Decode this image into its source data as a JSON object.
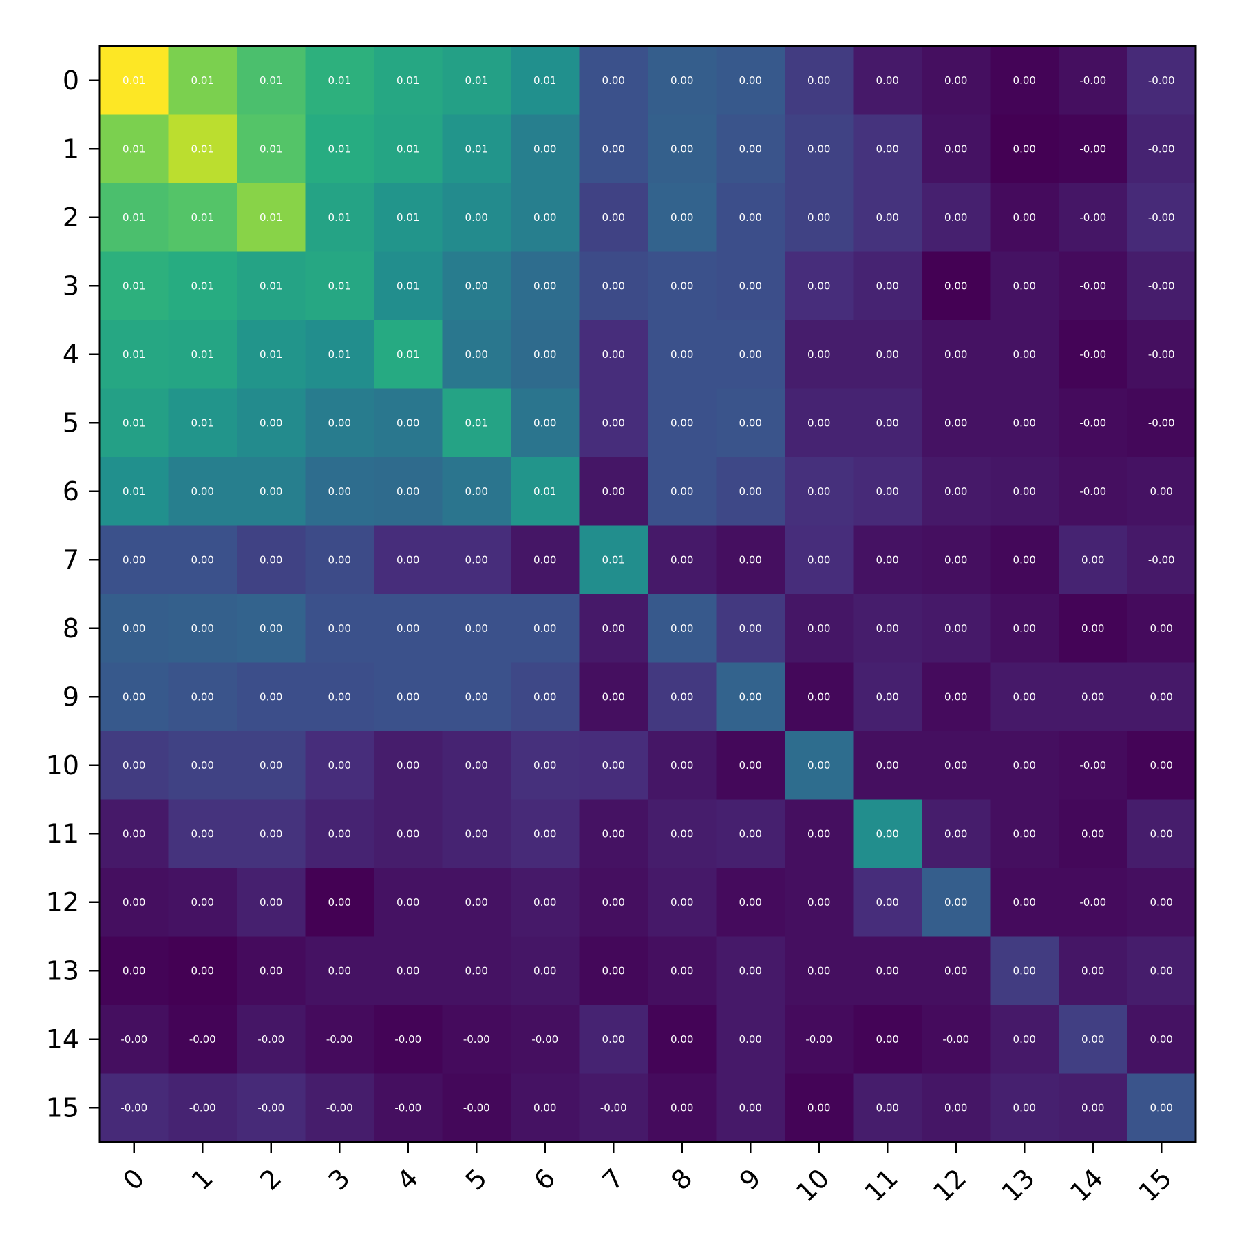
{
  "chart_data": {
    "type": "heatmap",
    "title": "",
    "xlabel": "",
    "ylabel": "",
    "x_categories": [
      "0",
      "1",
      "2",
      "3",
      "4",
      "5",
      "6",
      "7",
      "8",
      "9",
      "10",
      "11",
      "12",
      "13",
      "14",
      "15"
    ],
    "y_categories": [
      "0",
      "1",
      "2",
      "3",
      "4",
      "5",
      "6",
      "7",
      "8",
      "9",
      "10",
      "11",
      "12",
      "13",
      "14",
      "15"
    ],
    "colormap": "viridis",
    "cell_text_color": "#ffffff",
    "values": [
      [
        1.0,
        0.8,
        0.71,
        0.64,
        0.6,
        0.57,
        0.5,
        0.25,
        0.3,
        0.28,
        0.18,
        0.07,
        0.04,
        0.01,
        0.04,
        0.12
      ],
      [
        0.8,
        0.9,
        0.73,
        0.62,
        0.59,
        0.52,
        0.43,
        0.25,
        0.31,
        0.26,
        0.2,
        0.15,
        0.05,
        0.0,
        0.01,
        0.1
      ],
      [
        0.71,
        0.73,
        0.82,
        0.58,
        0.52,
        0.48,
        0.43,
        0.2,
        0.32,
        0.24,
        0.2,
        0.15,
        0.09,
        0.03,
        0.06,
        0.12
      ],
      [
        0.64,
        0.62,
        0.58,
        0.6,
        0.49,
        0.42,
        0.36,
        0.23,
        0.25,
        0.24,
        0.13,
        0.1,
        0.0,
        0.05,
        0.03,
        0.08
      ],
      [
        0.6,
        0.59,
        0.52,
        0.49,
        0.61,
        0.4,
        0.35,
        0.13,
        0.25,
        0.25,
        0.08,
        0.08,
        0.05,
        0.05,
        0.01,
        0.04
      ],
      [
        0.57,
        0.52,
        0.48,
        0.42,
        0.4,
        0.58,
        0.39,
        0.13,
        0.25,
        0.26,
        0.1,
        0.1,
        0.05,
        0.05,
        0.03,
        0.02
      ],
      [
        0.5,
        0.43,
        0.43,
        0.36,
        0.35,
        0.39,
        0.52,
        0.06,
        0.25,
        0.22,
        0.14,
        0.12,
        0.07,
        0.06,
        0.04,
        0.05
      ],
      [
        0.25,
        0.25,
        0.2,
        0.23,
        0.13,
        0.13,
        0.06,
        0.49,
        0.07,
        0.04,
        0.13,
        0.05,
        0.04,
        0.02,
        0.1,
        0.07
      ],
      [
        0.3,
        0.31,
        0.32,
        0.25,
        0.25,
        0.25,
        0.25,
        0.07,
        0.28,
        0.17,
        0.06,
        0.08,
        0.07,
        0.04,
        0.01,
        0.03
      ],
      [
        0.28,
        0.26,
        0.24,
        0.24,
        0.25,
        0.25,
        0.22,
        0.04,
        0.17,
        0.32,
        0.02,
        0.09,
        0.03,
        0.07,
        0.07,
        0.07
      ],
      [
        0.18,
        0.2,
        0.2,
        0.13,
        0.08,
        0.1,
        0.14,
        0.13,
        0.06,
        0.02,
        0.36,
        0.04,
        0.04,
        0.04,
        0.03,
        0.01
      ],
      [
        0.07,
        0.15,
        0.15,
        0.1,
        0.08,
        0.1,
        0.12,
        0.05,
        0.08,
        0.09,
        0.04,
        0.49,
        0.08,
        0.04,
        0.02,
        0.08
      ],
      [
        0.04,
        0.05,
        0.09,
        0.0,
        0.05,
        0.05,
        0.07,
        0.04,
        0.07,
        0.03,
        0.04,
        0.13,
        0.3,
        0.03,
        0.03,
        0.04
      ],
      [
        0.01,
        0.0,
        0.03,
        0.05,
        0.05,
        0.05,
        0.06,
        0.02,
        0.04,
        0.07,
        0.04,
        0.04,
        0.04,
        0.18,
        0.06,
        0.08
      ],
      [
        0.04,
        0.01,
        0.06,
        0.03,
        0.01,
        0.03,
        0.04,
        0.1,
        0.01,
        0.07,
        0.03,
        0.01,
        0.03,
        0.07,
        0.19,
        0.05
      ],
      [
        0.12,
        0.1,
        0.12,
        0.08,
        0.04,
        0.02,
        0.05,
        0.07,
        0.03,
        0.07,
        0.01,
        0.08,
        0.06,
        0.09,
        0.08,
        0.26
      ]
    ],
    "labels": [
      [
        "0.01",
        "0.01",
        "0.01",
        "0.01",
        "0.01",
        "0.01",
        "0.01",
        "0.00",
        "0.00",
        "0.00",
        "0.00",
        "0.00",
        "0.00",
        "0.00",
        "-0.00",
        "-0.00"
      ],
      [
        "0.01",
        "0.01",
        "0.01",
        "0.01",
        "0.01",
        "0.01",
        "0.00",
        "0.00",
        "0.00",
        "0.00",
        "0.00",
        "0.00",
        "0.00",
        "0.00",
        "-0.00",
        "-0.00"
      ],
      [
        "0.01",
        "0.01",
        "0.01",
        "0.01",
        "0.01",
        "0.00",
        "0.00",
        "0.00",
        "0.00",
        "0.00",
        "0.00",
        "0.00",
        "0.00",
        "0.00",
        "-0.00",
        "-0.00"
      ],
      [
        "0.01",
        "0.01",
        "0.01",
        "0.01",
        "0.01",
        "0.00",
        "0.00",
        "0.00",
        "0.00",
        "0.00",
        "0.00",
        "0.00",
        "0.00",
        "0.00",
        "-0.00",
        "-0.00"
      ],
      [
        "0.01",
        "0.01",
        "0.01",
        "0.01",
        "0.01",
        "0.00",
        "0.00",
        "0.00",
        "0.00",
        "0.00",
        "0.00",
        "0.00",
        "0.00",
        "0.00",
        "-0.00",
        "-0.00"
      ],
      [
        "0.01",
        "0.01",
        "0.00",
        "0.00",
        "0.00",
        "0.01",
        "0.00",
        "0.00",
        "0.00",
        "0.00",
        "0.00",
        "0.00",
        "0.00",
        "0.00",
        "-0.00",
        "-0.00"
      ],
      [
        "0.01",
        "0.00",
        "0.00",
        "0.00",
        "0.00",
        "0.00",
        "0.01",
        "0.00",
        "0.00",
        "0.00",
        "0.00",
        "0.00",
        "0.00",
        "0.00",
        "-0.00",
        "0.00"
      ],
      [
        "0.00",
        "0.00",
        "0.00",
        "0.00",
        "0.00",
        "0.00",
        "0.00",
        "0.01",
        "0.00",
        "0.00",
        "0.00",
        "0.00",
        "0.00",
        "0.00",
        "0.00",
        "-0.00"
      ],
      [
        "0.00",
        "0.00",
        "0.00",
        "0.00",
        "0.00",
        "0.00",
        "0.00",
        "0.00",
        "0.00",
        "0.00",
        "0.00",
        "0.00",
        "0.00",
        "0.00",
        "0.00",
        "0.00"
      ],
      [
        "0.00",
        "0.00",
        "0.00",
        "0.00",
        "0.00",
        "0.00",
        "0.00",
        "0.00",
        "0.00",
        "0.00",
        "0.00",
        "0.00",
        "0.00",
        "0.00",
        "0.00",
        "0.00"
      ],
      [
        "0.00",
        "0.00",
        "0.00",
        "0.00",
        "0.00",
        "0.00",
        "0.00",
        "0.00",
        "0.00",
        "0.00",
        "0.00",
        "0.00",
        "0.00",
        "0.00",
        "-0.00",
        "0.00"
      ],
      [
        "0.00",
        "0.00",
        "0.00",
        "0.00",
        "0.00",
        "0.00",
        "0.00",
        "0.00",
        "0.00",
        "0.00",
        "0.00",
        "0.00",
        "0.00",
        "0.00",
        "0.00",
        "0.00"
      ],
      [
        "0.00",
        "0.00",
        "0.00",
        "0.00",
        "0.00",
        "0.00",
        "0.00",
        "0.00",
        "0.00",
        "0.00",
        "0.00",
        "0.00",
        "0.00",
        "0.00",
        "-0.00",
        "0.00"
      ],
      [
        "0.00",
        "0.00",
        "0.00",
        "0.00",
        "0.00",
        "0.00",
        "0.00",
        "0.00",
        "0.00",
        "0.00",
        "0.00",
        "0.00",
        "0.00",
        "0.00",
        "0.00",
        "0.00"
      ],
      [
        "-0.00",
        "-0.00",
        "-0.00",
        "-0.00",
        "-0.00",
        "-0.00",
        "-0.00",
        "0.00",
        "0.00",
        "0.00",
        "-0.00",
        "0.00",
        "-0.00",
        "0.00",
        "0.00",
        "0.00"
      ],
      [
        "-0.00",
        "-0.00",
        "-0.00",
        "-0.00",
        "-0.00",
        "-0.00",
        "0.00",
        "-0.00",
        "0.00",
        "0.00",
        "0.00",
        "0.00",
        "0.00",
        "0.00",
        "0.00",
        "0.00"
      ]
    ]
  }
}
